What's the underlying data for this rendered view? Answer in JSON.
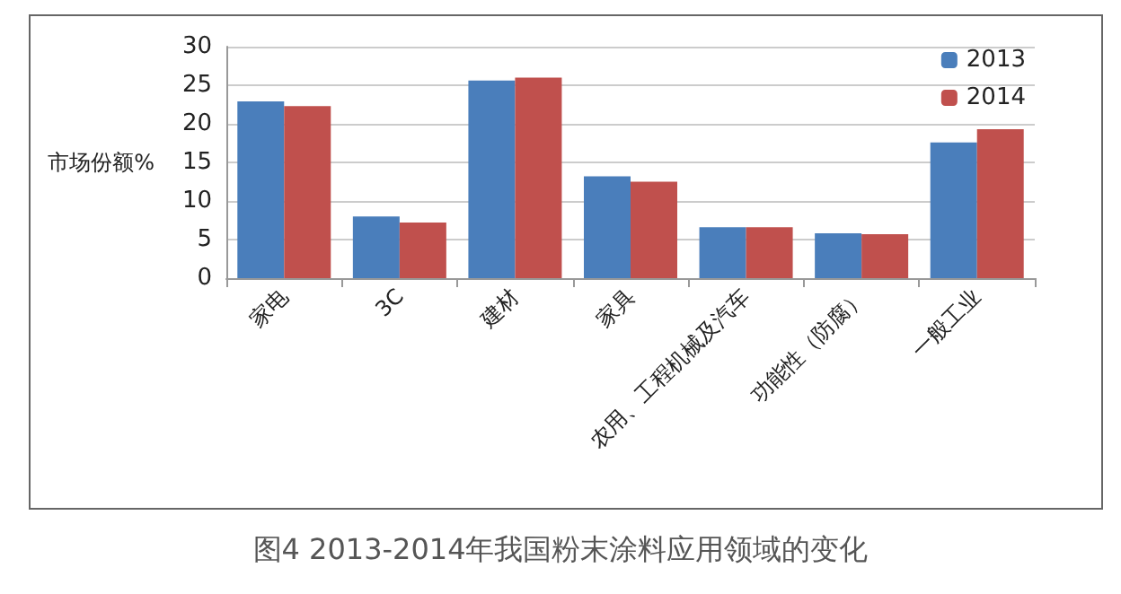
{
  "chart_data": {
    "type": "bar",
    "title": "图4 2013-2014年我国粉末涂料应用领域的变化",
    "ylabel": "市场份额%",
    "categories": [
      "家电",
      "3C",
      "建材",
      "家具",
      "农用、工程机械及汽车",
      "功能性（防腐）",
      "一般工业"
    ],
    "series": [
      {
        "name": "2013",
        "color": "#4a7ebb",
        "values": [
          22.9,
          8.0,
          25.6,
          13.2,
          6.6,
          5.8,
          17.6
        ]
      },
      {
        "name": "2014",
        "color": "#c0504d",
        "values": [
          22.3,
          7.2,
          26.0,
          12.5,
          6.6,
          5.7,
          19.3
        ]
      }
    ],
    "ylim": [
      0,
      30
    ],
    "yticks": [
      0,
      5,
      10,
      15,
      20,
      25,
      30
    ],
    "grid": "y",
    "legend": "top right"
  }
}
